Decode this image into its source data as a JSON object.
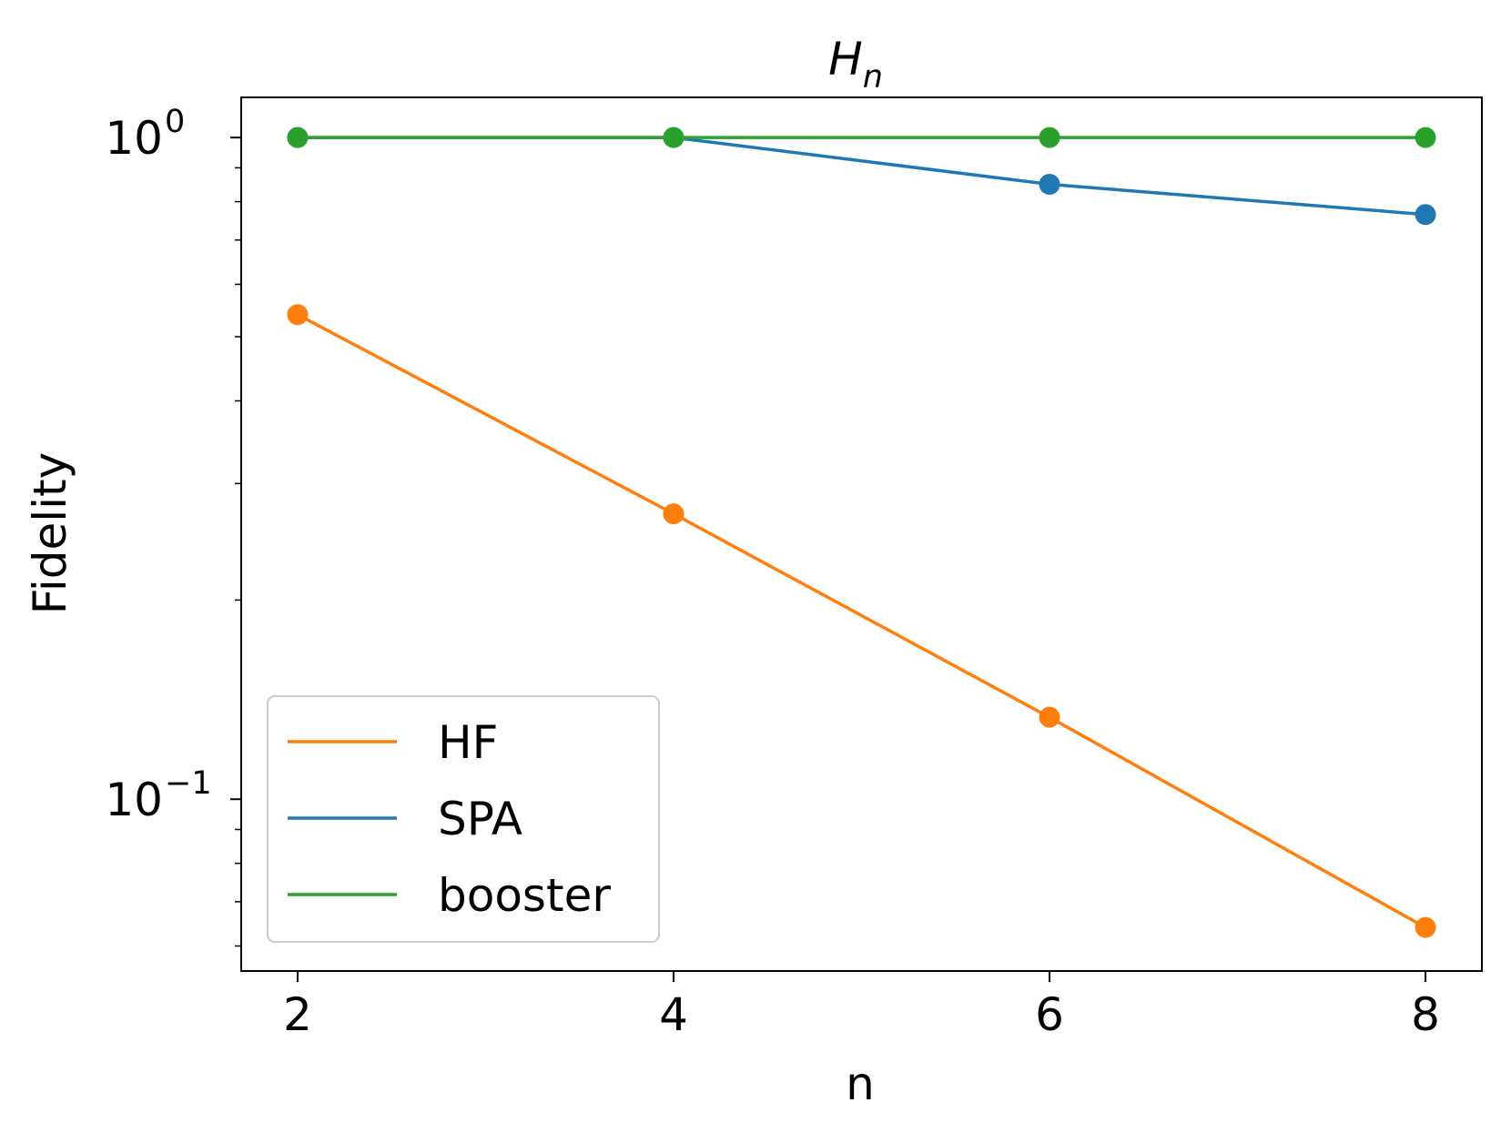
{
  "chart_data": {
    "type": "line",
    "title": "H",
    "title_subscript": "n",
    "xlabel": "n",
    "ylabel": "Fidelity",
    "yscale": "log",
    "x": [
      2,
      4,
      6,
      8
    ],
    "xlim": [
      1.7,
      8.3
    ],
    "ylim": [
      0.055,
      1.15
    ],
    "x_ticks": [
      "2",
      "4",
      "6",
      "8"
    ],
    "y_ticks": [
      {
        "base": "10",
        "exponent": "0",
        "value": 1
      },
      {
        "base": "10",
        "exponent": "−1",
        "value": 0.1
      }
    ],
    "grid": false,
    "legend_position": "lower-left",
    "series": [
      {
        "name": "HF",
        "color": "#ff7f0e",
        "values": [
          0.54,
          0.27,
          0.133,
          0.064
        ]
      },
      {
        "name": "SPA",
        "color": "#1f77b4",
        "values": [
          1.0,
          1.0,
          0.85,
          0.765
        ]
      },
      {
        "name": "booster",
        "color": "#2ca02c",
        "values": [
          1.0,
          1.0,
          1.0,
          1.0
        ]
      }
    ]
  }
}
